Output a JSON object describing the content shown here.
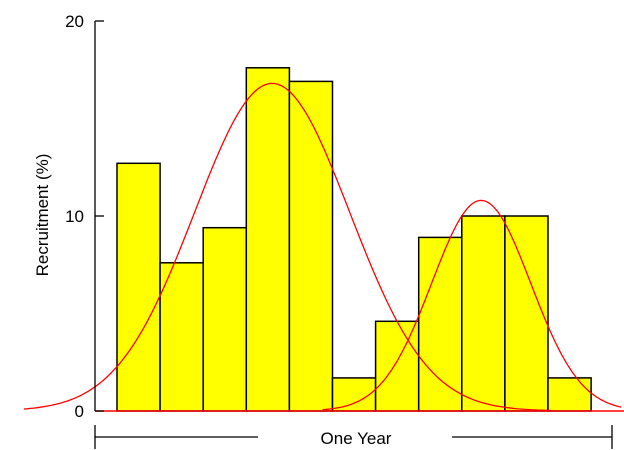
{
  "chart_data": {
    "type": "bar",
    "ylabel": "Recruitment (%)",
    "ylim": [
      0,
      20
    ],
    "yticks": [
      0,
      10,
      20
    ],
    "xlabel": "One Year",
    "bin_count": 11,
    "values": [
      12.7,
      7.6,
      9.4,
      17.6,
      16.9,
      1.7,
      4.6,
      8.9,
      10.0,
      10.0,
      1.7
    ],
    "fitted_curves": [
      {
        "mean": 3.6,
        "sd": 1.8,
        "peak": 16.8
      },
      {
        "mean": 8.45,
        "sd": 1.15,
        "peak": 10.8
      }
    ],
    "colors": {
      "bars": "#ffff00",
      "bar_outline": "#000000",
      "curves": "#ff0000",
      "baseline": "#ff0000"
    },
    "grid": false
  }
}
